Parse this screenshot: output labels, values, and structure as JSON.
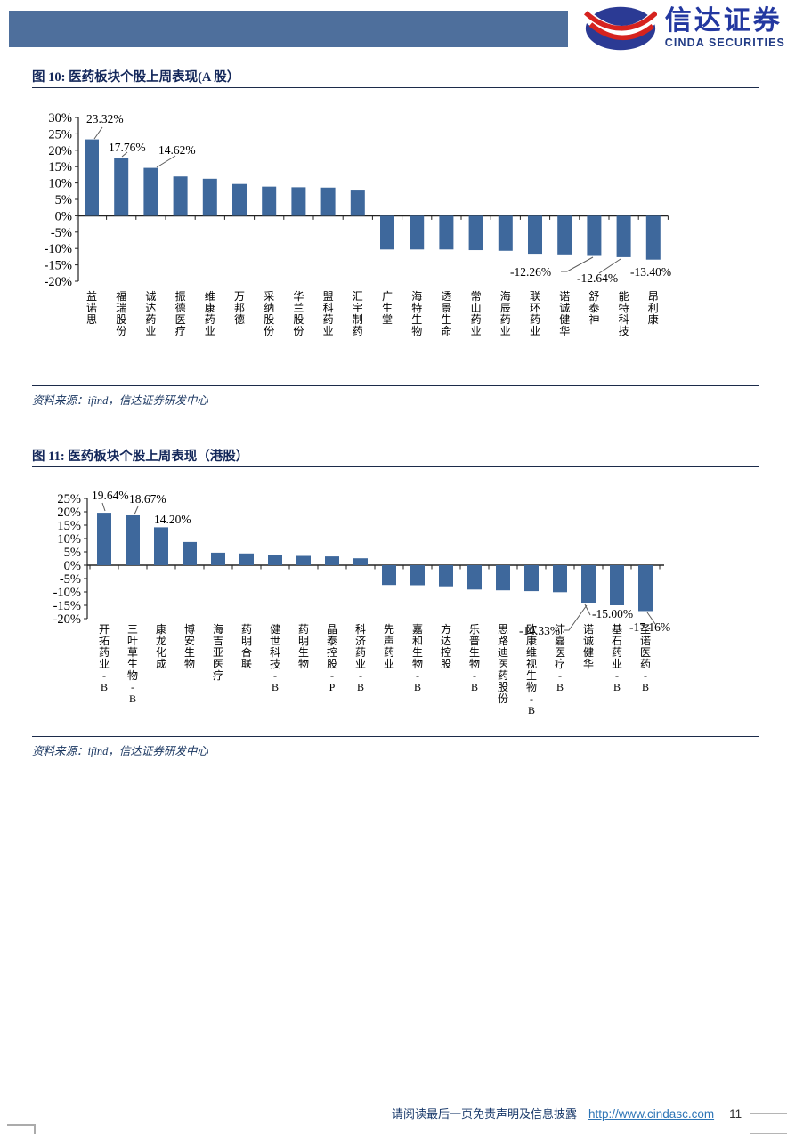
{
  "header": {
    "brand_cn": "信达证券",
    "brand_en": "CINDA SECURITIES"
  },
  "figures": [
    {
      "title": "图 10: 医药板块个股上周表现(A 股）",
      "source": "资料来源：ifind，信达证券研发中心"
    },
    {
      "title": "图 11: 医药板块个股上周表现（港股）",
      "source": "资料来源：ifind，信达证券研发中心"
    }
  ],
  "footer": {
    "disclaimer": "请阅读最后一页免责声明及信息披露",
    "link": "http://www.cindasc.com",
    "page_number": "11"
  },
  "chart_data": [
    {
      "type": "bar",
      "title": "图 10: 医药板块个股上周表现(A 股）",
      "categories": [
        "益诺思",
        "福瑞股份",
        "诚达药业",
        "振德医疗",
        "维康药业",
        "万邦德",
        "采纳股份",
        "华兰股份",
        "盟科药业",
        "汇宇制药",
        "广生堂",
        "海特生物",
        "透景生命",
        "常山药业",
        "海辰药业",
        "联环药业",
        "诺诚健华",
        "舒泰神",
        "能特科技",
        "昂利康"
      ],
      "values": [
        23.32,
        17.76,
        14.62,
        12.0,
        11.3,
        9.7,
        8.9,
        8.7,
        8.6,
        7.7,
        -10.3,
        -10.3,
        -10.3,
        -10.5,
        -10.7,
        -11.6,
        -11.8,
        -12.26,
        -12.64,
        -13.4
      ],
      "data_labels": [
        {
          "category": "益诺思",
          "text": "23.32%"
        },
        {
          "category": "福瑞股份",
          "text": "17.76%"
        },
        {
          "category": "诚达药业",
          "text": "14.62%"
        },
        {
          "category": "舒泰神",
          "text": "-12.26%"
        },
        {
          "category": "能特科技",
          "text": "-12.64%"
        },
        {
          "category": "昂利康",
          "text": "-13.40%"
        }
      ],
      "xlabel": "",
      "ylabel": "",
      "ylim": [
        -20,
        30
      ],
      "ytick_step": 5,
      "ytick_format": "percent",
      "bar_color": "#3e689c",
      "grid": false,
      "legend": null
    },
    {
      "type": "bar",
      "title": "图 11: 医药板块个股上周表现（港股）",
      "categories": [
        "开拓药业-B",
        "三叶草生物-B",
        "康龙化成",
        "博安生物",
        "海吉亚医疗",
        "药明合联",
        "健世科技-B",
        "药明生物",
        "晶泰控股-P",
        "科济药业-B",
        "先声药业",
        "嘉和生物-B",
        "方达控股",
        "乐普生物-B",
        "思路迪医药股份",
        "欧康维视生物-B",
        "沛嘉医疗-B",
        "诺诚健华",
        "基石药业-B",
        "圣诺医药-B"
      ],
      "values": [
        19.64,
        18.67,
        14.2,
        8.7,
        4.7,
        4.4,
        3.8,
        3.5,
        3.3,
        2.6,
        -7.4,
        -7.5,
        -7.9,
        -9.1,
        -9.4,
        -9.7,
        -10.1,
        -14.33,
        -15.0,
        -17.16
      ],
      "data_labels": [
        {
          "category": "开拓药业-B",
          "text": "19.64%"
        },
        {
          "category": "三叶草生物-B",
          "text": "18.67%"
        },
        {
          "category": "康龙化成",
          "text": "14.20%"
        },
        {
          "category": "诺诚健华",
          "text": "-14.33%"
        },
        {
          "category": "基石药业-B",
          "text": "-15.00%"
        },
        {
          "category": "圣诺医药-B",
          "text": "-17.16%"
        }
      ],
      "xlabel": "",
      "ylabel": "",
      "ylim": [
        -20,
        25
      ],
      "ytick_step": 5,
      "ytick_format": "percent",
      "bar_color": "#3e689c",
      "grid": false,
      "legend": null
    }
  ]
}
